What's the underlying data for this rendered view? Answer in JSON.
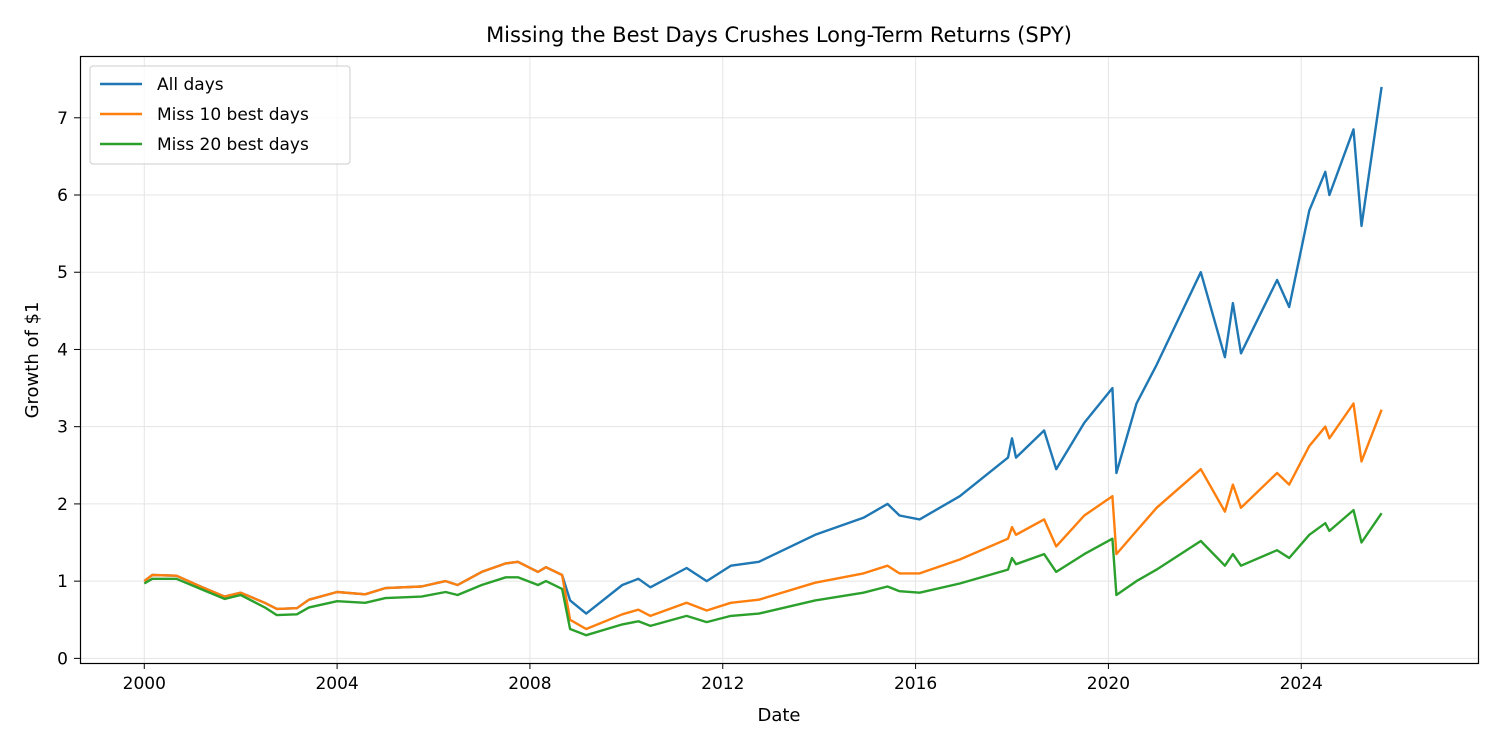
{
  "chart_data": {
    "type": "line",
    "title": "Missing the Best Days Crushes Long-Term Returns (SPY)",
    "xlabel": "Date",
    "ylabel": "Growth of $1",
    "xlim": [
      "1998-09",
      "2027-09"
    ],
    "ylim": [
      -0.06,
      7.8
    ],
    "x_ticks": [
      "2000",
      "2004",
      "2008",
      "2012",
      "2016",
      "2020",
      "2024"
    ],
    "y_ticks": [
      "0",
      "1",
      "2",
      "3",
      "4",
      "5",
      "6",
      "7"
    ],
    "grid": true,
    "legend_position": "top-left",
    "x": [
      "2000-01",
      "2000-03",
      "2000-09",
      "2001-03",
      "2001-09",
      "2002-01",
      "2002-07",
      "2002-10",
      "2003-03",
      "2003-06",
      "2004-01",
      "2004-08",
      "2005-01",
      "2005-10",
      "2006-04",
      "2006-07",
      "2007-01",
      "2007-07",
      "2007-10",
      "2008-03",
      "2008-05",
      "2008-09",
      "2008-11",
      "2009-03",
      "2009-12",
      "2010-04",
      "2010-07",
      "2011-04",
      "2011-09",
      "2012-03",
      "2012-10",
      "2013-12",
      "2014-12",
      "2015-06",
      "2015-09",
      "2016-02",
      "2016-12",
      "2017-12",
      "2018-01",
      "2018-02",
      "2018-09",
      "2018-12",
      "2019-07",
      "2020-02",
      "2020-03",
      "2020-08",
      "2021-01",
      "2021-12",
      "2022-06",
      "2022-08",
      "2022-10",
      "2023-07",
      "2023-10",
      "2024-03",
      "2024-07",
      "2024-08",
      "2025-02",
      "2025-04",
      "2025-09"
    ],
    "series": [
      {
        "name": "All days",
        "color": "#1f77b4",
        "values": [
          1.0,
          1.08,
          1.07,
          0.93,
          0.8,
          0.85,
          0.72,
          0.64,
          0.65,
          0.76,
          0.86,
          0.83,
          0.91,
          0.93,
          1.0,
          0.95,
          1.12,
          1.23,
          1.25,
          1.12,
          1.18,
          1.08,
          0.75,
          0.58,
          0.95,
          1.03,
          0.92,
          1.17,
          1.0,
          1.2,
          1.25,
          1.6,
          1.82,
          2.0,
          1.85,
          1.8,
          2.1,
          2.6,
          2.85,
          2.6,
          2.95,
          2.45,
          3.05,
          3.5,
          2.4,
          3.3,
          3.8,
          5.0,
          3.9,
          4.6,
          3.95,
          4.9,
          4.55,
          5.8,
          6.3,
          6.0,
          6.85,
          5.6,
          7.4
        ]
      },
      {
        "name": "Miss 10 best days",
        "color": "#ff7f0e",
        "values": [
          1.0,
          1.08,
          1.07,
          0.93,
          0.8,
          0.85,
          0.72,
          0.64,
          0.65,
          0.76,
          0.86,
          0.83,
          0.91,
          0.93,
          1.0,
          0.95,
          1.12,
          1.23,
          1.25,
          1.12,
          1.18,
          1.08,
          0.5,
          0.38,
          0.57,
          0.63,
          0.55,
          0.72,
          0.62,
          0.72,
          0.76,
          0.98,
          1.1,
          1.2,
          1.1,
          1.1,
          1.28,
          1.55,
          1.7,
          1.6,
          1.8,
          1.45,
          1.85,
          2.1,
          1.35,
          1.65,
          1.95,
          2.45,
          1.9,
          2.25,
          1.95,
          2.4,
          2.25,
          2.75,
          3.0,
          2.85,
          3.3,
          2.55,
          3.22
        ]
      },
      {
        "name": "Miss 20 best days",
        "color": "#2ca02c",
        "values": [
          0.97,
          1.03,
          1.03,
          0.9,
          0.77,
          0.82,
          0.66,
          0.56,
          0.57,
          0.66,
          0.74,
          0.72,
          0.78,
          0.8,
          0.86,
          0.82,
          0.95,
          1.05,
          1.05,
          0.95,
          1.0,
          0.9,
          0.38,
          0.3,
          0.44,
          0.48,
          0.42,
          0.55,
          0.47,
          0.55,
          0.58,
          0.75,
          0.85,
          0.93,
          0.87,
          0.85,
          0.97,
          1.15,
          1.3,
          1.22,
          1.35,
          1.12,
          1.35,
          1.55,
          0.82,
          1.0,
          1.15,
          1.52,
          1.2,
          1.35,
          1.2,
          1.4,
          1.3,
          1.6,
          1.75,
          1.65,
          1.92,
          1.5,
          1.88
        ]
      }
    ]
  }
}
